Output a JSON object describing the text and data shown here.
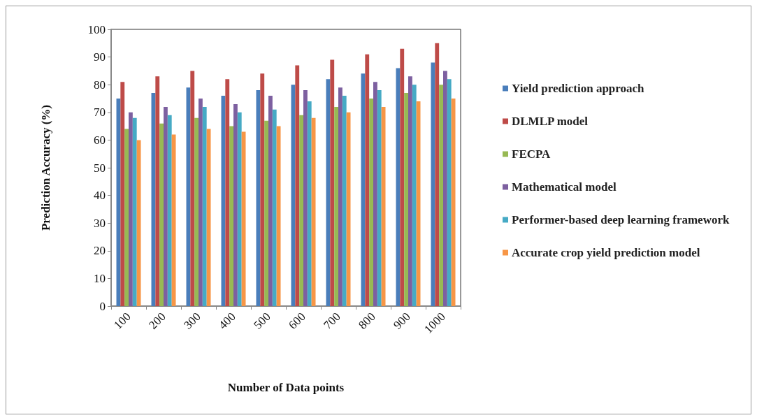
{
  "chart_data": {
    "type": "bar",
    "xlabel": "Number of Data points",
    "ylabel": "Prediction Accuracy (%)",
    "categories": [
      "100",
      "200",
      "300",
      "400",
      "500",
      "600",
      "700",
      "800",
      "900",
      "1000"
    ],
    "series": [
      {
        "name": "Yield prediction approach",
        "color": "#4a7ebb",
        "values": [
          75,
          77,
          79,
          76,
          78,
          80,
          82,
          84,
          86,
          88
        ]
      },
      {
        "name": "DLMLP model",
        "color": "#be4b48",
        "values": [
          81,
          83,
          85,
          82,
          84,
          87,
          89,
          91,
          93,
          95
        ]
      },
      {
        "name": "FECPA",
        "color": "#98b954",
        "values": [
          64,
          66,
          68,
          65,
          67,
          69,
          72,
          75,
          77,
          80
        ]
      },
      {
        "name": "Mathematical model",
        "color": "#7d60a0",
        "values": [
          70,
          72,
          75,
          73,
          76,
          78,
          79,
          81,
          83,
          85
        ]
      },
      {
        "name": "Performer-based deep learning framework",
        "color": "#46aac5",
        "values": [
          68,
          69,
          72,
          70,
          71,
          74,
          76,
          78,
          80,
          82
        ]
      },
      {
        "name": "Accurate crop yield prediction model",
        "color": "#f79646",
        "values": [
          60,
          62,
          64,
          63,
          65,
          68,
          70,
          72,
          74,
          75
        ]
      }
    ],
    "ylim": [
      0,
      100
    ],
    "yticks": [
      0,
      10,
      20,
      30,
      40,
      50,
      60,
      70,
      80,
      90,
      100
    ],
    "grid": false,
    "legend": "right"
  }
}
